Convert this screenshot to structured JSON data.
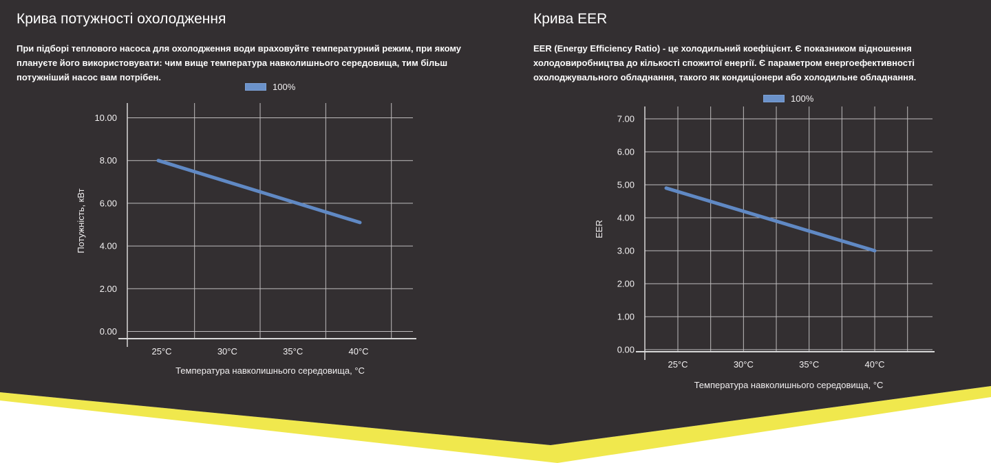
{
  "theme": {
    "background_dark": "#332F31",
    "accent_yellow": "#F0E84D",
    "series_blue": "#6089C4",
    "legend_swatch_blue": "#6B92CA",
    "grid_color": "#BFBDBE",
    "axis_color": "#D9D9D9",
    "text_color": "#F2F0F1"
  },
  "sections": [
    {
      "title": "Крива потужності охолодження",
      "description": "При підборі теплового насоса для охолодження води враховуйте температурний режим, при якому плануєте його використовувати: чим вище температура навколишнього середовища, тим більш потужніший насос вам потрібен."
    },
    {
      "title": "Крива EER",
      "description": "EER (Energy Efficiency Ratio) - це холодильний коефіцієнт. Є показником відношення холодовиробництва до кількості спожитої енергії. Є параметром енергоефективності охолоджувального обладнання, такого як кондиціонери або холодильне обладнання."
    }
  ],
  "chart_data": [
    {
      "type": "line",
      "title": "Крива потужності охолодження",
      "x": [
        25,
        40
      ],
      "series": [
        {
          "name": "100%",
          "values": [
            8.0,
            5.1
          ]
        }
      ],
      "xlabel": "Температура навколишнього середовища, °С",
      "ylabel": "Потужність, кВт",
      "x_tick_values": [
        25,
        30,
        35,
        40
      ],
      "x_tick_labels": [
        "25°C",
        "30°C",
        "35°C",
        "40°C"
      ],
      "y_tick_values": [
        0,
        2,
        4,
        6,
        8,
        10
      ],
      "y_tick_labels": [
        "0.00",
        "2.00",
        "4.00",
        "6.00",
        "8.00",
        "10.00"
      ],
      "ylim": [
        0,
        10.7
      ],
      "xlim": [
        22.4,
        44.2
      ],
      "grid": true,
      "legend_position": "top"
    },
    {
      "type": "line",
      "title": "Крива EER",
      "x": [
        25,
        40
      ],
      "series": [
        {
          "name": "100%",
          "values": [
            4.9,
            3.0
          ]
        }
      ],
      "xlabel": "Температура навколишнього середовища, °С",
      "ylabel": "EER",
      "x_tick_values": [
        25,
        30,
        35,
        40
      ],
      "x_tick_labels": [
        "25°C",
        "30°C",
        "35°C",
        "40°C"
      ],
      "y_tick_values": [
        0,
        1,
        2,
        3,
        4,
        5,
        6,
        7
      ],
      "y_tick_labels": [
        "0.00",
        "1.00",
        "2.00",
        "3.00",
        "4.00",
        "5.00",
        "6.00",
        "7.00"
      ],
      "ylim": [
        0,
        7.4
      ],
      "xlim": [
        22.5,
        44.4
      ],
      "grid": true,
      "legend_position": "top"
    }
  ]
}
